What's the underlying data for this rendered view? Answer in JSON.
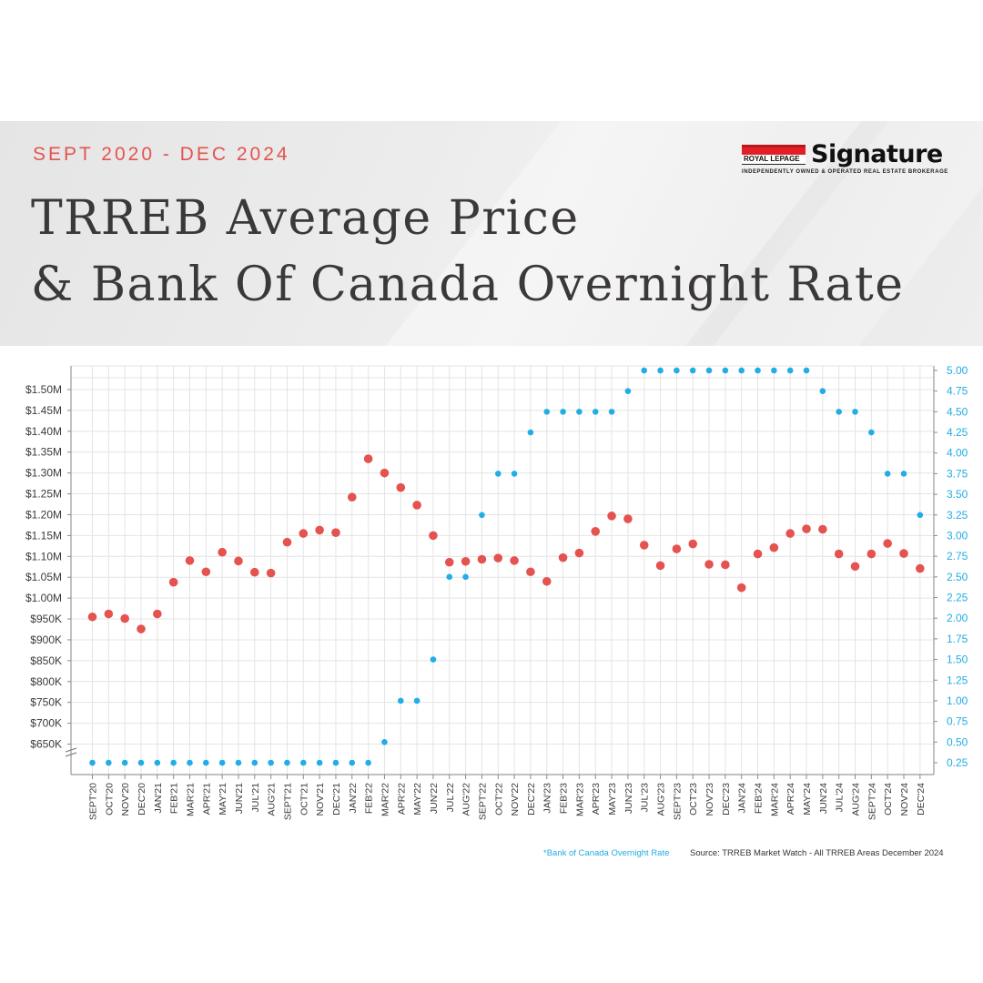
{
  "header": {
    "date_range": "SEPT 2020 - DEC 2024",
    "title_line1": "TRREB Average Price",
    "title_line2": "& Bank Of Canada Overnight Rate"
  },
  "logo": {
    "brand": "ROYAL LEPAGE",
    "wordmark": "Signature",
    "tagline": "INDEPENDENTLY OWNED & OPERATED REAL ESTATE BROKERAGE"
  },
  "colors": {
    "accent_red": "#e4534f",
    "accent_blue": "#21ade6",
    "title": "#3b3838",
    "grid": "#e4e4e4"
  },
  "footer": {
    "rate_note": "*Bank of Canada Overnight Rate",
    "source": "Source: TRREB Market Watch - All TRREB Areas December 2024"
  },
  "chart_data": {
    "type": "scatter",
    "title": "TRREB Average Price & Bank Of Canada Overnight Rate",
    "categories": [
      "SEPT'20",
      "OCT'20",
      "NOV'20",
      "DEC'20",
      "JAN'21",
      "FEB'21",
      "MAR'21",
      "APR'21",
      "MAY'21",
      "JUN'21",
      "JUL'21",
      "AUG'21",
      "SEPT'21",
      "OCT'21",
      "NOV'21",
      "DEC'21",
      "JAN'22",
      "FEB'22",
      "MAR'22",
      "APR'22",
      "MAY'22",
      "JUN'22",
      "JUL'22",
      "AUG'22",
      "SEPT'22",
      "OCT'22",
      "NOV'22",
      "DEC'22",
      "JAN'23",
      "FEB'23",
      "MAR'23",
      "APR'23",
      "MAY'23",
      "JUN'23",
      "JUL'23",
      "AUG'23",
      "SEPT'23",
      "OCT'23",
      "NOV'23",
      "DEC'23",
      "JAN'24",
      "FEB'24",
      "MAR'24",
      "APR'24",
      "MAY'24",
      "JUN'24",
      "JUL'24",
      "AUG'24",
      "SEPT'24",
      "OCT'24",
      "NOV'24",
      "DEC'24"
    ],
    "series": [
      {
        "name": "TRREB Average Price",
        "axis": "left",
        "color": "#e4534f",
        "values": [
          955000,
          962000,
          951000,
          926000,
          962000,
          1038000,
          1090000,
          1063000,
          1110000,
          1089000,
          1062000,
          1060000,
          1134000,
          1155000,
          1163000,
          1157000,
          1242000,
          1334000,
          1300000,
          1265000,
          1223000,
          1150000,
          1086000,
          1088000,
          1093000,
          1096000,
          1090000,
          1063000,
          1040000,
          1097000,
          1108000,
          1160000,
          1197000,
          1190000,
          1127000,
          1078000,
          1118000,
          1130000,
          1081000,
          1080000,
          1025000,
          1106000,
          1121000,
          1155000,
          1166000,
          1165000,
          1106000,
          1076000,
          1106000,
          1131000,
          1107000,
          1071000
        ]
      },
      {
        "name": "Bank of Canada Overnight Rate",
        "axis": "right",
        "color": "#21ade6",
        "values": [
          0.25,
          0.25,
          0.25,
          0.25,
          0.25,
          0.25,
          0.25,
          0.25,
          0.25,
          0.25,
          0.25,
          0.25,
          0.25,
          0.25,
          0.25,
          0.25,
          0.25,
          0.25,
          0.5,
          1.0,
          1.0,
          1.5,
          2.5,
          2.5,
          3.25,
          3.75,
          3.75,
          4.25,
          4.5,
          4.5,
          4.5,
          4.5,
          4.5,
          4.75,
          5.0,
          5.0,
          5.0,
          5.0,
          5.0,
          5.0,
          5.0,
          5.0,
          5.0,
          5.0,
          5.0,
          4.75,
          4.5,
          4.5,
          4.25,
          3.75,
          3.75,
          3.25
        ]
      }
    ],
    "y_left_ticks": [
      "$650K",
      "$700K",
      "$750K",
      "$800K",
      "$850K",
      "$900K",
      "$950K",
      "$1.00M",
      "$1.05M",
      "$1.10M",
      "$1.15M",
      "$1.20M",
      "$1.25M",
      "$1.30M",
      "$1.35M",
      "$1.40M",
      "$1.45M",
      "$1.50M"
    ],
    "y_right_ticks": [
      "0.25",
      "0.50",
      "0.75",
      "1.00",
      "1.25",
      "1.50",
      "1.75",
      "2.00",
      "2.25",
      "2.50",
      "2.75",
      "3.00",
      "3.25",
      "3.50",
      "3.75",
      "4.00",
      "4.25",
      "4.50",
      "4.75",
      "5.00"
    ],
    "ylim_left": [
      650000,
      1500000
    ],
    "ylim_right": [
      0.25,
      5.0
    ],
    "grid": true,
    "axis_break": "left"
  }
}
